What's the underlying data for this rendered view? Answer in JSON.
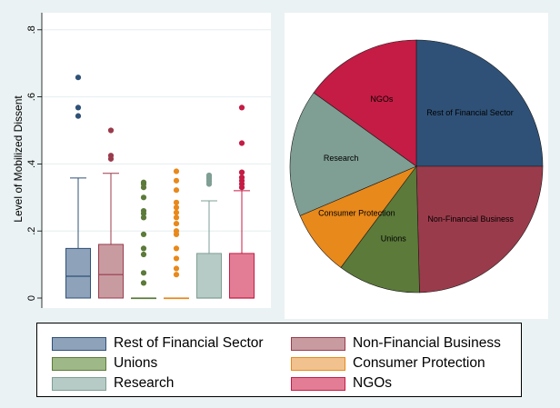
{
  "chart_data": [
    {
      "type": "box",
      "ylabel": "Level of Mobilized Dissent",
      "ylim": [
        0,
        0.85
      ],
      "yticks": [
        {
          "value": 0,
          "label": "0"
        },
        {
          "value": 0.2,
          "label": ".2"
        },
        {
          "value": 0.4,
          "label": ".4"
        },
        {
          "value": 0.6,
          "label": ".6"
        },
        {
          "value": 0.8,
          "label": ".8"
        }
      ],
      "grid": true,
      "series": [
        {
          "name": "Rest of Financial Sector",
          "min": 0,
          "q1": 0,
          "median": 0.065,
          "q3": 0.148,
          "max": 0.358,
          "outliers": [
            0.543,
            0.568,
            0.658
          ]
        },
        {
          "name": "Non-Financial Business",
          "min": 0,
          "q1": 0,
          "median": 0.07,
          "q3": 0.16,
          "max": 0.372,
          "outliers": [
            0.415,
            0.425,
            0.5
          ]
        },
        {
          "name": "Unions",
          "min": 0,
          "q1": 0,
          "median": 0,
          "q3": 0,
          "max": 0,
          "outliers": [
            0.045,
            0.075,
            0.13,
            0.148,
            0.19,
            0.24,
            0.252,
            0.26,
            0.3,
            0.33,
            0.34,
            0.345
          ]
        },
        {
          "name": "Consumer Protection",
          "min": 0,
          "q1": 0,
          "median": 0,
          "q3": 0,
          "max": 0,
          "outliers": [
            0.07,
            0.088,
            0.118,
            0.148,
            0.19,
            0.2,
            0.222,
            0.24,
            0.255,
            0.27,
            0.285,
            0.322,
            0.35,
            0.378
          ]
        },
        {
          "name": "Research",
          "min": 0,
          "q1": 0,
          "median": 0,
          "q3": 0.133,
          "max": 0.29,
          "outliers": [
            0.34,
            0.348,
            0.355,
            0.36,
            0.366
          ]
        },
        {
          "name": "NGOs",
          "min": 0,
          "q1": 0,
          "median": 0,
          "q3": 0.133,
          "max": 0.32,
          "outliers": [
            0.33,
            0.34,
            0.35,
            0.36,
            0.375,
            0.462,
            0.568
          ]
        }
      ]
    },
    {
      "type": "pie",
      "slices": [
        {
          "label": "Rest of Financial Sector",
          "value": 25.0
        },
        {
          "label": "Non-Financial Business",
          "value": 24.6
        },
        {
          "label": "Unions",
          "value": 10.6
        },
        {
          "label": "Consumer Protection",
          "value": 8.4
        },
        {
          "label": "Research",
          "value": 16.3
        },
        {
          "label": "NGOs",
          "value": 15.1
        }
      ]
    }
  ],
  "colors": {
    "Rest of Financial Sector": "#2f5177",
    "Non-Financial Business": "#9a3b4b",
    "Unions": "#5c7a3a",
    "Consumer Protection": "#e8891b",
    "Research": "#7f9e94",
    "NGOs": "#c41c44"
  },
  "box_fills": {
    "Rest of Financial Sector": "#8ea2ba",
    "Non-Financial Business": "#c89ba1",
    "Unions": "#9fb887",
    "Consumer Protection": "#f1c28e",
    "Research": "#b6cbc5",
    "NGOs": "#e27d95"
  },
  "legend": {
    "items": [
      "Rest of Financial Sector",
      "Non-Financial Business",
      "Unions",
      "Consumer Protection",
      "Research",
      "NGOs"
    ],
    "placement": "bottom"
  }
}
